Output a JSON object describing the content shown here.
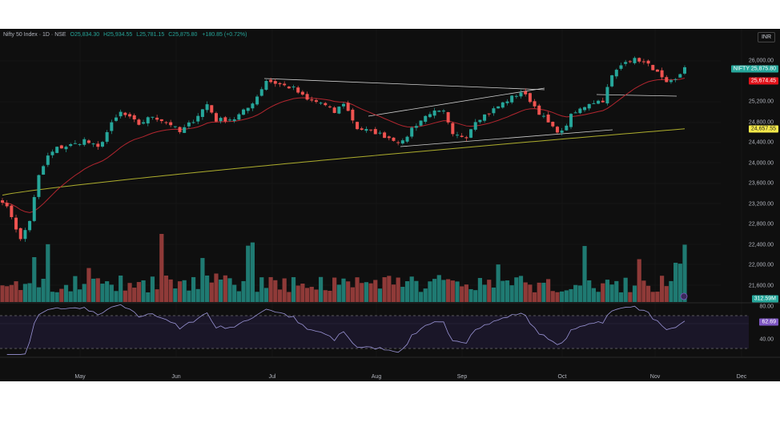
{
  "header": {
    "symbol": "Nifty 50 Index · 1D · NSE",
    "open": "O25,834.30",
    "high": "H25,934.55",
    "low": "L25,781.15",
    "close": "C25,875.80",
    "change": "+180.85 (+0.72%)"
  },
  "currency_button": "INR",
  "price_axis": [
    "26,000.00",
    "25,200.00",
    "24,800.00",
    "24,400.00",
    "24,000.00",
    "23,600.00",
    "23,200.00",
    "22,800.00",
    "22,400.00",
    "22,000.00",
    "21,600.00"
  ],
  "price_axis_values": [
    26000,
    25200,
    24800,
    24400,
    24000,
    23600,
    23200,
    22800,
    22400,
    22000,
    21600
  ],
  "tags": {
    "symbol_label": "NIFTY",
    "last_price": "25,875.80",
    "ma_short": "25,674.45",
    "ma_long": "24,657.55",
    "volume": "312.59M",
    "rsi": "62.69"
  },
  "rsi_axis": [
    "80.00",
    "40.00"
  ],
  "time_axis": [
    "May",
    "Jun",
    "Jul",
    "Aug",
    "Sep",
    "Oct",
    "Nov",
    "Dec"
  ],
  "colors": {
    "up": "#26a69a",
    "down": "#ef5350",
    "ma_short": "#b2262f",
    "ma_long": "#d4d434",
    "rsi": "#9a94d6",
    "rsi_tag": "#7e57c2"
  },
  "chart_data": {
    "type": "candlestick",
    "price_keypoints": [
      [
        0,
        23270
      ],
      [
        2,
        22960
      ],
      [
        4,
        22490
      ],
      [
        6,
        22880
      ],
      [
        8,
        23740
      ],
      [
        10,
        24130
      ],
      [
        12,
        24290
      ],
      [
        16,
        24370
      ],
      [
        18,
        24450
      ],
      [
        21,
        24290
      ],
      [
        24,
        24760
      ],
      [
        26,
        24990
      ],
      [
        30,
        24760
      ],
      [
        33,
        24920
      ],
      [
        37,
        24760
      ],
      [
        39,
        24600
      ],
      [
        42,
        24840
      ],
      [
        45,
        25150
      ],
      [
        47,
        24840
      ],
      [
        51,
        24870
      ],
      [
        54,
        25080
      ],
      [
        56,
        25310
      ],
      [
        58,
        25620
      ],
      [
        61,
        25540
      ],
      [
        64,
        25460
      ],
      [
        67,
        25230
      ],
      [
        70,
        25180
      ],
      [
        73,
        24990
      ],
      [
        75,
        25180
      ],
      [
        78,
        24680
      ],
      [
        82,
        24600
      ],
      [
        84,
        24530
      ],
      [
        88,
        24400
      ],
      [
        90,
        24680
      ],
      [
        94,
        24990
      ],
      [
        97,
        24990
      ],
      [
        99,
        24530
      ],
      [
        102,
        24530
      ],
      [
        104,
        24840
      ],
      [
        107,
        24990
      ],
      [
        111,
        25230
      ],
      [
        114,
        25390
      ],
      [
        116,
        25230
      ],
      [
        118,
        24990
      ],
      [
        121,
        24680
      ],
      [
        123,
        24600
      ],
      [
        125,
        24920
      ],
      [
        129,
        25180
      ],
      [
        132,
        25230
      ],
      [
        134,
        25700
      ],
      [
        137,
        26020
      ],
      [
        140,
        26020
      ],
      [
        143,
        25860
      ],
      [
        146,
        25540
      ],
      [
        148,
        25620
      ],
      [
        150,
        25875
      ]
    ],
    "ma_long_range": [
      23370,
      24670
    ]
  }
}
